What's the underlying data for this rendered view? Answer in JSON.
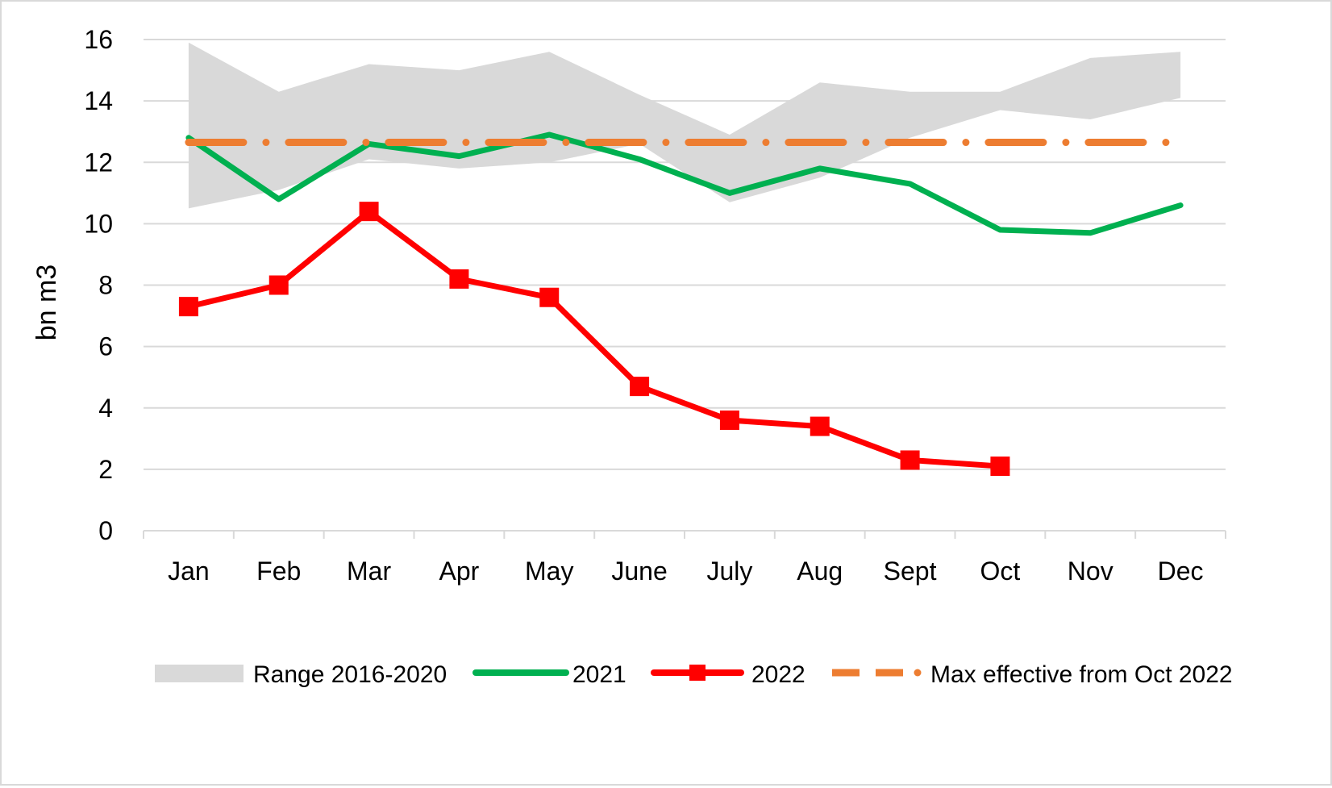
{
  "chart_data": {
    "type": "line",
    "ylabel": "bn m3",
    "xlabel": "",
    "ylim": [
      0,
      16
    ],
    "yticks": [
      0,
      2,
      4,
      6,
      8,
      10,
      12,
      14,
      16
    ],
    "yticks_text": [
      "0",
      "2",
      "4",
      "6",
      "8",
      "10",
      "12",
      "14",
      "16"
    ],
    "categories": [
      "Jan",
      "Feb",
      "Mar",
      "Apr",
      "May",
      "June",
      "July",
      "Aug",
      "Sept",
      "Oct",
      "Nov",
      "Dec"
    ],
    "grid": true,
    "legend_position": "bottom",
    "range": {
      "name": "Range 2016-2020",
      "color": "#d9d9d9",
      "low": [
        10.5,
        11.1,
        12.1,
        11.8,
        12.0,
        12.6,
        10.7,
        11.5,
        12.8,
        13.7,
        13.4,
        14.1
      ],
      "high": [
        15.9,
        14.3,
        15.2,
        15.0,
        15.6,
        14.2,
        12.9,
        14.6,
        14.3,
        14.3,
        15.4,
        15.6
      ]
    },
    "series": [
      {
        "name": "2021",
        "color": "#00b050",
        "values": [
          12.8,
          10.8,
          12.6,
          12.2,
          12.9,
          12.1,
          11.0,
          11.8,
          11.3,
          9.8,
          9.7,
          10.6
        ]
      },
      {
        "name": "2022",
        "color": "#ff0000",
        "marker": "square",
        "values": [
          7.3,
          8.0,
          10.4,
          8.2,
          7.6,
          4.7,
          3.6,
          3.4,
          2.3,
          2.1,
          null,
          null
        ]
      },
      {
        "name": "Max effective from Oct 2022",
        "color": "#ed7d31",
        "style": "dash-dot",
        "values": [
          12.65,
          12.65,
          12.65,
          12.65,
          12.65,
          12.65,
          12.65,
          12.65,
          12.65,
          12.65,
          12.65,
          12.65
        ]
      }
    ]
  }
}
